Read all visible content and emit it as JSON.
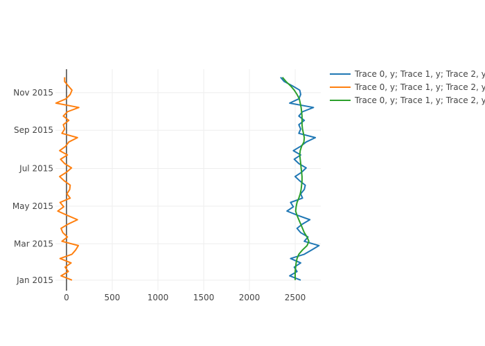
{
  "chart_data": {
    "type": "line",
    "title": "",
    "xlabel": "",
    "ylabel": "",
    "orientation": "values on x-axis, dates on y-axis",
    "xlim": [
      -121,
      2780
    ],
    "ylim": [
      "2014-12-15",
      "2015-12-09"
    ],
    "grid": true,
    "legend_position": "top-right",
    "x_ticks": [
      0,
      500,
      1000,
      1500,
      2000,
      2500
    ],
    "y_ticks": [
      {
        "date": "2015-01-01",
        "label": "Jan 2015"
      },
      {
        "date": "2015-03-01",
        "label": "Mar 2015"
      },
      {
        "date": "2015-05-01",
        "label": "May 2015"
      },
      {
        "date": "2015-07-01",
        "label": "Jul 2015"
      },
      {
        "date": "2015-09-01",
        "label": "Sep 2015"
      },
      {
        "date": "2015-11-01",
        "label": "Nov 2015"
      }
    ],
    "dates": [
      "2015-01-01",
      "2015-01-08",
      "2015-01-15",
      "2015-01-22",
      "2015-01-29",
      "2015-02-05",
      "2015-02-12",
      "2015-02-19",
      "2015-02-26",
      "2015-03-05",
      "2015-03-12",
      "2015-03-19",
      "2015-03-26",
      "2015-04-02",
      "2015-04-09",
      "2015-04-16",
      "2015-04-23",
      "2015-04-30",
      "2015-05-07",
      "2015-05-14",
      "2015-05-21",
      "2015-05-28",
      "2015-06-04",
      "2015-06-11",
      "2015-06-18",
      "2015-06-25",
      "2015-07-02",
      "2015-07-09",
      "2015-07-16",
      "2015-07-23",
      "2015-07-30",
      "2015-08-06",
      "2015-08-13",
      "2015-08-20",
      "2015-08-27",
      "2015-09-03",
      "2015-09-10",
      "2015-09-17",
      "2015-09-24",
      "2015-10-01",
      "2015-10-08",
      "2015-10-15",
      "2015-10-22",
      "2015-10-29",
      "2015-11-05",
      "2015-11-12",
      "2015-11-19",
      "2015-11-26"
    ],
    "series": [
      {
        "name": "Trace 0, y; Trace 1, y; Trace 2, y",
        "color": "#1f77b4",
        "values": [
          2560,
          2440,
          2520,
          2490,
          2560,
          2450,
          2600,
          2680,
          2760,
          2600,
          2640,
          2560,
          2520,
          2580,
          2660,
          2530,
          2410,
          2480,
          2450,
          2580,
          2560,
          2600,
          2610,
          2550,
          2500,
          2570,
          2620,
          2540,
          2490,
          2560,
          2480,
          2560,
          2620,
          2720,
          2540,
          2560,
          2540,
          2600,
          2540,
          2580,
          2700,
          2440,
          2540,
          2560,
          2550,
          2470,
          2380,
          2340
        ]
      },
      {
        "name": "Trace 0, y; Trace 1, y; Trace 2, y",
        "color": "#ff7f0e",
        "values": [
          60,
          -60,
          20,
          -15,
          50,
          -70,
          60,
          100,
          130,
          -50,
          10,
          -40,
          -60,
          20,
          120,
          10,
          -95,
          -30,
          -70,
          40,
          5,
          35,
          40,
          -25,
          -75,
          0,
          55,
          -20,
          -65,
          10,
          -75,
          -10,
          25,
          120,
          -50,
          -20,
          -35,
          25,
          -35,
          10,
          135,
          -115,
          -5,
          40,
          60,
          20,
          -20,
          -20
        ]
      },
      {
        "name": "Trace 0, y; Trace 1, y; Trace 2, y",
        "color": "#2ca02c",
        "values": [
          2500,
          2500,
          2500,
          2505,
          2510,
          2520,
          2540,
          2580,
          2630,
          2650,
          2630,
          2600,
          2580,
          2560,
          2540,
          2520,
          2505,
          2510,
          2520,
          2540,
          2555,
          2565,
          2570,
          2575,
          2575,
          2570,
          2565,
          2560,
          2555,
          2550,
          2555,
          2570,
          2595,
          2600,
          2590,
          2580,
          2575,
          2575,
          2575,
          2570,
          2565,
          2555,
          2545,
          2520,
          2490,
          2450,
          2400,
          2360
        ]
      }
    ]
  }
}
